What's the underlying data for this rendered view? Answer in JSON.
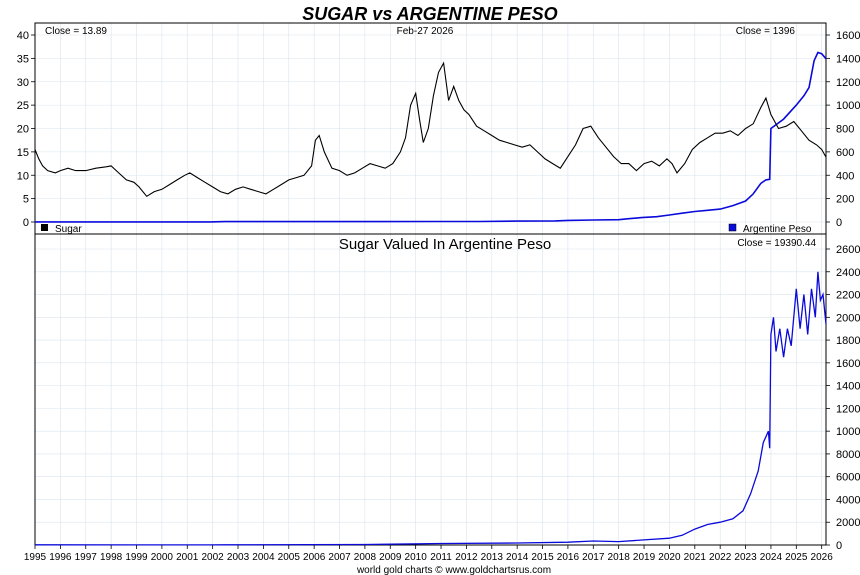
{
  "page": {
    "title": "SUGAR vs ARGENTINE PESO",
    "date": "Feb-27  2026",
    "footer": "world gold charts © www.goldchartsrus.com",
    "colors": {
      "title": "#1a1aee",
      "sugar": "#000000",
      "peso": "#0a0adb",
      "grid": "#d9e4ee",
      "frame": "#000000"
    }
  },
  "chart_data": [
    {
      "type": "line",
      "panel": "top",
      "left_close_label": "Close = 13.89",
      "right_close_label": "Close = 1396",
      "left_axis": {
        "ticks": [
          0,
          5,
          10,
          15,
          20,
          25,
          30,
          35,
          40
        ],
        "range": [
          0,
          40
        ]
      },
      "right_axis": {
        "ticks": [
          0,
          200,
          400,
          600,
          800,
          1000,
          1200,
          1400,
          1600
        ],
        "range": [
          0,
          1600
        ]
      },
      "x_ticks": [
        "1995",
        "1996",
        "1997",
        "1998",
        "1999",
        "2000",
        "2001",
        "2002",
        "2003",
        "2004",
        "2005",
        "2006",
        "2007",
        "2008",
        "2009",
        "2010",
        "2011",
        "2012",
        "2013",
        "2014",
        "2015",
        "2016",
        "2017",
        "2018",
        "2019",
        "2020",
        "2021",
        "2022",
        "2023",
        "2024",
        "2025",
        "2026"
      ],
      "x_range": [
        1995.0,
        2026.17
      ],
      "series": [
        {
          "name": "Sugar",
          "axis": "left",
          "color": "#000000",
          "x": [
            1995.0,
            1995.15,
            1995.3,
            1995.5,
            1995.8,
            1996.0,
            1996.3,
            1996.6,
            1997.0,
            1997.4,
            1997.8,
            1998.0,
            1998.3,
            1998.6,
            1998.9,
            1999.1,
            1999.4,
            1999.7,
            2000.0,
            2000.3,
            2000.6,
            2000.9,
            2001.1,
            2001.4,
            2001.7,
            2002.0,
            2002.3,
            2002.6,
            2002.9,
            2003.2,
            2003.5,
            2003.8,
            2004.1,
            2004.4,
            2004.7,
            2005.0,
            2005.3,
            2005.6,
            2005.9,
            2006.05,
            2006.2,
            2006.4,
            2006.7,
            2007.0,
            2007.3,
            2007.6,
            2007.9,
            2008.2,
            2008.5,
            2008.8,
            2009.1,
            2009.4,
            2009.6,
            2009.8,
            2010.0,
            2010.15,
            2010.3,
            2010.5,
            2010.7,
            2010.9,
            2011.1,
            2011.3,
            2011.5,
            2011.7,
            2011.9,
            2012.1,
            2012.4,
            2012.7,
            2013.0,
            2013.3,
            2013.6,
            2013.9,
            2014.2,
            2014.5,
            2014.8,
            2015.1,
            2015.4,
            2015.7,
            2016.0,
            2016.3,
            2016.6,
            2016.9,
            2017.2,
            2017.5,
            2017.8,
            2018.1,
            2018.4,
            2018.7,
            2019.0,
            2019.3,
            2019.6,
            2019.9,
            2020.1,
            2020.3,
            2020.6,
            2020.9,
            2021.2,
            2021.5,
            2021.8,
            2022.1,
            2022.4,
            2022.7,
            2023.0,
            2023.3,
            2023.6,
            2023.8,
            2024.0,
            2024.3,
            2024.6,
            2024.9,
            2025.2,
            2025.5,
            2025.8,
            2026.0,
            2026.17
          ],
          "values": [
            15.5,
            13.5,
            12.0,
            11.0,
            10.5,
            11.0,
            11.5,
            11.0,
            11.0,
            11.5,
            11.8,
            12.0,
            10.5,
            9.0,
            8.5,
            7.5,
            5.5,
            6.5,
            7.0,
            8.0,
            9.0,
            10.0,
            10.5,
            9.5,
            8.5,
            7.5,
            6.5,
            6.0,
            7.0,
            7.5,
            7.0,
            6.5,
            6.0,
            7.0,
            8.0,
            9.0,
            9.5,
            10.0,
            12.0,
            17.5,
            18.5,
            15.0,
            11.5,
            11.0,
            10.0,
            10.5,
            11.5,
            12.5,
            12.0,
            11.5,
            12.5,
            15.0,
            18.0,
            25.0,
            27.5,
            22.0,
            17.0,
            20.0,
            27.0,
            32.0,
            34.0,
            26.0,
            29.0,
            26.0,
            24.0,
            23.0,
            20.5,
            19.5,
            18.5,
            17.5,
            17.0,
            16.5,
            16.0,
            16.5,
            15.0,
            13.5,
            12.5,
            11.5,
            14.0,
            16.5,
            20.0,
            20.5,
            18.0,
            16.0,
            14.0,
            12.5,
            12.5,
            11.0,
            12.5,
            13.0,
            12.0,
            13.5,
            12.5,
            10.5,
            12.5,
            15.5,
            17.0,
            18.0,
            19.0,
            19.0,
            19.5,
            18.5,
            20.0,
            21.0,
            24.5,
            26.5,
            23.0,
            20.0,
            20.5,
            21.5,
            19.5,
            17.5,
            16.5,
            15.5,
            13.89
          ]
        },
        {
          "name": "Argentine Peso",
          "axis": "right",
          "color": "#0a0adb",
          "x": [
            1995.0,
            2001.9,
            2002.5,
            2005.0,
            2008.0,
            2011.0,
            2012.5,
            2014.0,
            2015.5,
            2016.0,
            2017.0,
            2018.0,
            2018.4,
            2018.9,
            2019.5,
            2020.0,
            2020.5,
            2021.0,
            2021.5,
            2022.0,
            2022.5,
            2023.0,
            2023.3,
            2023.6,
            2023.8,
            2023.95,
            2024.0,
            2024.5,
            2025.0,
            2025.3,
            2025.5,
            2025.7,
            2025.85,
            2026.0,
            2026.17
          ],
          "values": [
            1,
            1,
            3,
            3,
            3.2,
            4,
            4.6,
            8,
            9.5,
            14,
            17,
            20,
            28,
            38,
            45,
            60,
            75,
            90,
            100,
            110,
            140,
            180,
            240,
            330,
            360,
            365,
            800,
            880,
            1000,
            1080,
            1150,
            1380,
            1450,
            1440,
            1396
          ]
        }
      ],
      "legend": [
        "Sugar",
        "Argentine Peso"
      ]
    },
    {
      "type": "line",
      "panel": "bottom",
      "title": "Sugar Valued In Argentine Peso",
      "right_close_label": "Close = 19390.44",
      "right_axis": {
        "ticks": [
          0,
          2000,
          4000,
          6000,
          8000,
          10000,
          12000,
          14000,
          16000,
          18000,
          20000,
          22000,
          24000,
          26000
        ],
        "range": [
          0,
          26000
        ]
      },
      "x_range": [
        1995.0,
        2026.17
      ],
      "series": [
        {
          "axis": "right",
          "color": "#0a0adb",
          "x": [
            1995.0,
            2001.9,
            2002.5,
            2008.0,
            2011.0,
            2014.0,
            2016.0,
            2017.0,
            2018.0,
            2019.0,
            2020.0,
            2020.5,
            2021.0,
            2021.5,
            2022.0,
            2022.5,
            2022.9,
            2023.2,
            2023.5,
            2023.7,
            2023.8,
            2023.9,
            2023.95,
            2024.0,
            2024.1,
            2024.2,
            2024.35,
            2024.5,
            2024.65,
            2024.8,
            2025.0,
            2025.15,
            2025.3,
            2025.45,
            2025.6,
            2025.75,
            2025.85,
            2025.95,
            2026.05,
            2026.17
          ],
          "values": [
            15,
            11,
            20,
            40,
            130,
            180,
            250,
            350,
            300,
            450,
            600,
            850,
            1400,
            1800,
            2000,
            2300,
            3000,
            4500,
            6500,
            9000,
            9500,
            10000,
            8500,
            18500,
            20000,
            17000,
            19000,
            16500,
            19000,
            17500,
            22500,
            19000,
            22000,
            18500,
            22500,
            20000,
            24000,
            21500,
            22000,
            19390.44
          ]
        }
      ]
    }
  ]
}
